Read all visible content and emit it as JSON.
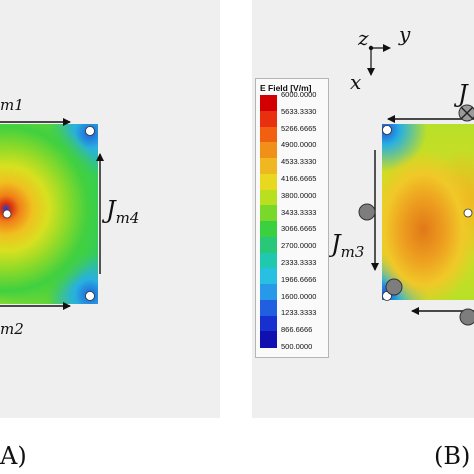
{
  "legend": {
    "title": "E Field [V/m]",
    "ticks": [
      "6000.0000",
      "5633.3330",
      "5266.6665",
      "4900.0000",
      "4533.3330",
      "4166.6665",
      "3800.0000",
      "3433.3333",
      "3066.6665",
      "2700.0000",
      "2333.3333",
      "1966.6666",
      "1600.0000",
      "1233.3333",
      "866.6666",
      "500.0000"
    ],
    "colors": [
      "#d20000",
      "#e83010",
      "#f06010",
      "#f09018",
      "#f0b820",
      "#e8d820",
      "#b8e020",
      "#7ad82a",
      "#3ad040",
      "#28c878",
      "#20c8b0",
      "#28c0e0",
      "#2898e8",
      "#2060e0",
      "#1830d0",
      "#1010b0"
    ]
  },
  "panel_a": {
    "labels": {
      "jm1": "m1",
      "jm4_main": "J",
      "jm4_sub": "m4",
      "jm2": "m2"
    },
    "caption": "A)"
  },
  "panel_b": {
    "axes": {
      "z": "z",
      "y": "y",
      "x": "x"
    },
    "labels": {
      "jm3_main": "J",
      "jm3_sub": "m3",
      "jtop": "J"
    },
    "caption": "(B)"
  }
}
